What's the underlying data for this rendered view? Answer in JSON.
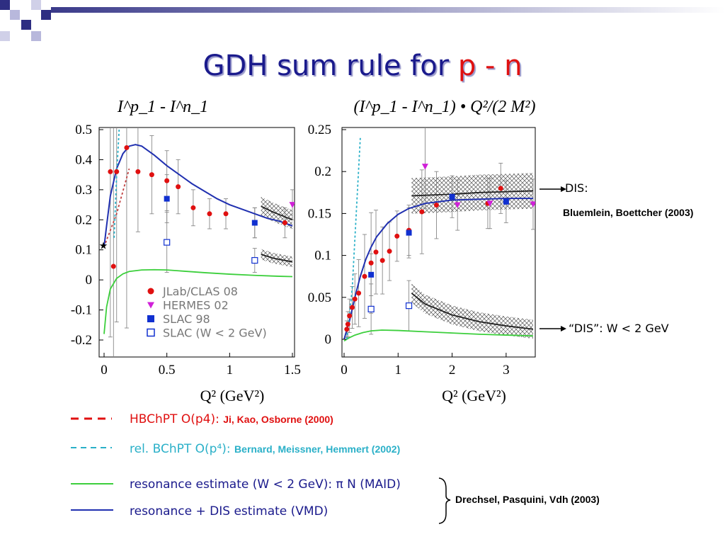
{
  "slide": {
    "title_main": "GDH sum rule for ",
    "title_highlight": "p - n"
  },
  "colors": {
    "title": "#1a1a8c",
    "highlight": "#e01010",
    "red": "#e01010",
    "cyan": "#2ab0c8",
    "green": "#3ccf3c",
    "blue": "#2030b0",
    "magenta": "#d020d8",
    "square": "#1030d0"
  },
  "chart_data": [
    {
      "type": "scatter",
      "title": "I^p_1 - I^n_1",
      "xlabel": "Q² (GeV²)",
      "ylabel": "",
      "xlim": [
        0,
        1.5
      ],
      "ylim": [
        -0.2,
        0.5
      ],
      "x_ticks": [
        "0",
        "0.5",
        "1",
        "1.5"
      ],
      "y_ticks": [
        "0.5",
        "0.4",
        "0.3",
        "0.2",
        "0.1",
        "0",
        "-0.1",
        "-0.2"
      ],
      "legend_position": "bottom-right",
      "legend": [
        "JLab/CLAS 08",
        "HERMES 02",
        "SLAC 98",
        "SLAC (W < 2 GeV)"
      ],
      "series": [
        {
          "name": "JLab/CLAS 08",
          "marker": "circle",
          "color": "#e01010",
          "x": [
            0.05,
            0.075,
            0.1,
            0.18,
            0.27,
            0.38,
            0.5,
            0.59,
            0.71,
            0.84,
            0.97,
            1.2,
            1.44
          ],
          "y": [
            0.36,
            0.045,
            0.36,
            0.44,
            0.36,
            0.35,
            0.33,
            0.31,
            0.24,
            0.22,
            0.22,
            0.19,
            0.19
          ],
          "err": [
            0.55,
            0.7,
            0.5,
            0.6,
            0.2,
            0.13,
            0.1,
            0.09,
            0.06,
            0.05,
            0.05,
            0.05,
            0.05
          ]
        },
        {
          "name": "HERMES 02",
          "marker": "triangle-down",
          "color": "#d020d8",
          "x": [
            1.5
          ],
          "y": [
            0.25
          ],
          "err": [
            0.05
          ]
        },
        {
          "name": "SLAC 98",
          "marker": "square",
          "color": "#1030d0",
          "x": [
            0.5,
            1.2
          ],
          "y": [
            0.27,
            0.19
          ],
          "err": [
            0.08,
            0.05
          ]
        },
        {
          "name": "SLAC (W < 2 GeV)",
          "marker": "open-square",
          "color": "#1030d0",
          "x": [
            0.5,
            1.2
          ],
          "y": [
            0.125,
            0.065
          ],
          "err": [
            0.1,
            0.04
          ]
        }
      ],
      "curves": [
        {
          "name": "resonance + DIS estimate (VMD)",
          "color": "#2030b0",
          "style": "solid",
          "x": [
            0,
            0.02,
            0.05,
            0.1,
            0.15,
            0.2,
            0.25,
            0.3,
            0.35,
            0.4,
            0.5,
            0.6,
            0.7,
            0.8,
            0.9,
            1.0,
            1.1,
            1.2,
            1.3,
            1.4,
            1.5
          ],
          "y": [
            0.11,
            0.18,
            0.28,
            0.37,
            0.42,
            0.445,
            0.45,
            0.445,
            0.43,
            0.415,
            0.38,
            0.35,
            0.32,
            0.295,
            0.27,
            0.25,
            0.235,
            0.22,
            0.205,
            0.195,
            0.18
          ]
        },
        {
          "name": "resonance estimate (W < 2 GeV): π N (MAID)",
          "color": "#3ccf3c",
          "style": "solid",
          "x": [
            0,
            0.02,
            0.05,
            0.1,
            0.15,
            0.2,
            0.3,
            0.4,
            0.5,
            0.6,
            0.8,
            1.0,
            1.2,
            1.4,
            1.5
          ],
          "y": [
            -0.18,
            -0.09,
            -0.03,
            0.005,
            0.02,
            0.028,
            0.033,
            0.034,
            0.033,
            0.03,
            0.024,
            0.019,
            0.015,
            0.012,
            0.011
          ]
        },
        {
          "name": "HBChPT O(p4)",
          "color": "#c04040",
          "style": "dash",
          "x": [
            0,
            0.1,
            0.2
          ],
          "y": [
            0.11,
            0.22,
            0.37
          ]
        },
        {
          "name": "rel. BChPT O(p4)",
          "color": "#2ab0c8",
          "style": "dash",
          "x": [
            0.08,
            0.1,
            0.12
          ],
          "y": [
            0.14,
            0.35,
            0.5
          ]
        },
        {
          "name": "DIS (Bluemlein, Boettcher)",
          "color": "#222222",
          "style": "solid",
          "x": [
            1.25,
            1.35,
            1.5
          ],
          "y": [
            0.245,
            0.225,
            0.2
          ]
        },
        {
          "name": "\"DIS\": W < 2 GeV",
          "color": "#222222",
          "style": "solid",
          "x": [
            1.25,
            1.35,
            1.5
          ],
          "y": [
            0.085,
            0.072,
            0.06
          ]
        }
      ],
      "points": [
        {
          "name": "star",
          "x": 0,
          "y": 0.115
        }
      ]
    },
    {
      "type": "scatter",
      "title": "(I^p_1 - I^n_1) • Q²/(2 M²)",
      "xlabel": "Q² (GeV²)",
      "ylabel": "",
      "xlim": [
        0,
        3.5
      ],
      "ylim": [
        0,
        0.25
      ],
      "x_ticks": [
        "0",
        "1",
        "2",
        "3"
      ],
      "y_ticks": [
        "0.25",
        "0.2",
        "0.15",
        "0.1",
        "0.05",
        "0"
      ],
      "series": [
        {
          "name": "JLab/CLAS 08",
          "marker": "circle",
          "color": "#e01010",
          "x": [
            0.05,
            0.07,
            0.1,
            0.15,
            0.2,
            0.27,
            0.38,
            0.5,
            0.59,
            0.71,
            0.84,
            0.98,
            1.2,
            1.44,
            1.71,
            2.66,
            2.9
          ],
          "y": [
            0.012,
            0.018,
            0.028,
            0.038,
            0.048,
            0.055,
            0.075,
            0.091,
            0.104,
            0.094,
            0.105,
            0.123,
            0.13,
            0.152,
            0.16,
            0.162,
            0.18
          ],
          "err": [
            0.01,
            0.015,
            0.02,
            0.025,
            0.03,
            0.04,
            0.05,
            0.06,
            0.05,
            0.04,
            0.035,
            0.03,
            0.03,
            0.05,
            0.04,
            0.03,
            0.03
          ]
        },
        {
          "name": "HERMES 02",
          "marker": "triangle-down",
          "color": "#d020d8",
          "x": [
            1.5,
            2.1,
            2.7,
            3.5
          ],
          "y": [
            0.206,
            0.16,
            0.162,
            0.161
          ],
          "err": [
            0.05,
            0.03,
            0.03,
            0.03
          ]
        },
        {
          "name": "SLAC 98",
          "marker": "square",
          "color": "#1030d0",
          "x": [
            0.5,
            1.2,
            2.0,
            3.0
          ],
          "y": [
            0.077,
            0.127,
            0.17,
            0.164
          ],
          "err": [
            0.025,
            0.03,
            0.025,
            0.025
          ]
        },
        {
          "name": "SLAC (W < 2 GeV)",
          "marker": "open-square",
          "color": "#1030d0",
          "x": [
            0.5,
            1.2
          ],
          "y": [
            0.036,
            0.04
          ],
          "err": [
            0.03,
            0.03
          ]
        }
      ],
      "curves": [
        {
          "name": "resonance + DIS estimate (VMD)",
          "color": "#2030b0",
          "style": "solid",
          "x": [
            0,
            0.1,
            0.2,
            0.3,
            0.4,
            0.5,
            0.6,
            0.8,
            1.0,
            1.2,
            1.5,
            2.0,
            2.5,
            3.0,
            3.5
          ],
          "y": [
            0.0,
            0.022,
            0.05,
            0.075,
            0.095,
            0.11,
            0.122,
            0.138,
            0.149,
            0.156,
            0.162,
            0.166,
            0.167,
            0.168,
            0.168
          ]
        },
        {
          "name": "resonance estimate (W < 2 GeV): π N (MAID)",
          "color": "#3ccf3c",
          "style": "solid",
          "x": [
            0,
            0.1,
            0.2,
            0.35,
            0.5,
            0.7,
            1.0,
            1.5,
            2.0,
            2.5,
            3.0,
            3.5
          ],
          "y": [
            -0.002,
            0.002,
            0.005,
            0.008,
            0.01,
            0.011,
            0.0105,
            0.009,
            0.0075,
            0.006,
            0.005,
            0.004
          ]
        },
        {
          "name": "rel. BChPT O(p4)",
          "color": "#2ab0c8",
          "style": "dash",
          "x": [
            0.05,
            0.15,
            0.3
          ],
          "y": [
            0.0,
            0.06,
            0.24
          ]
        },
        {
          "name": "DIS (Bluemlein, Boettcher)",
          "color": "#222222",
          "style": "solid",
          "x": [
            1.25,
            2.0,
            2.5,
            3.0,
            3.5
          ],
          "y": [
            0.171,
            0.173,
            0.175,
            0.176,
            0.177
          ]
        },
        {
          "name": "\"DIS\": W < 2 GeV",
          "color": "#222222",
          "style": "solid",
          "x": [
            1.25,
            1.5,
            2.0,
            2.5,
            3.0,
            3.5
          ],
          "y": [
            0.055,
            0.042,
            0.029,
            0.021,
            0.016,
            0.012
          ]
        }
      ]
    }
  ],
  "annotations": {
    "dis_label": "DIS:",
    "dis_ref": "Bluemlein, Boettcher (2003)",
    "dis_w2_label": "“DIS”: W < 2 GeV"
  },
  "legend_bottom": {
    "hbchpt_label": "HBChPT O(p4): ",
    "hbchpt_ref": "Ji, Kao, Osborne (2000)",
    "rbchpt_label": "rel. BChPT O(p⁴): ",
    "rbchpt_ref": "Bernard, Meissner, Hemmert (2002)",
    "resonance_label": "resonance estimate (W < 2 GeV): π N (MAID)",
    "vmd_label": "resonance + DIS estimate (VMD)",
    "drechsel_ref": "Drechsel, Pasquini, Vdh (2003)"
  }
}
